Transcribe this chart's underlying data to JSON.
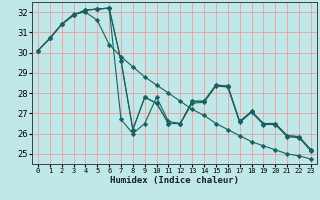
{
  "title": "",
  "xlabel": "Humidex (Indice chaleur)",
  "bg_color": "#c0e8e8",
  "grid_color": "#e8a0a0",
  "line_color": "#1a6060",
  "xlim": [
    -0.5,
    23.5
  ],
  "ylim": [
    24.5,
    32.5
  ],
  "xticks": [
    0,
    1,
    2,
    3,
    4,
    5,
    6,
    7,
    8,
    9,
    10,
    11,
    12,
    13,
    14,
    15,
    16,
    17,
    18,
    19,
    20,
    21,
    22,
    23
  ],
  "yticks": [
    25,
    26,
    27,
    28,
    29,
    30,
    31,
    32
  ],
  "series": [
    [
      30.1,
      30.7,
      31.4,
      31.9,
      32.0,
      31.6,
      30.4,
      29.8,
      29.3,
      28.8,
      28.4,
      28.0,
      27.6,
      27.2,
      26.9,
      26.5,
      26.2,
      25.9,
      25.6,
      25.4,
      25.2,
      25.0,
      24.9,
      24.75
    ],
    [
      30.1,
      30.7,
      31.4,
      31.85,
      32.1,
      32.15,
      32.2,
      29.6,
      26.2,
      27.8,
      27.5,
      26.5,
      26.5,
      27.6,
      27.6,
      28.4,
      28.35,
      26.6,
      27.1,
      26.5,
      26.5,
      25.9,
      25.85,
      25.2
    ],
    [
      30.1,
      30.7,
      31.4,
      31.85,
      32.1,
      32.15,
      32.2,
      29.6,
      26.2,
      27.8,
      27.5,
      26.5,
      26.5,
      27.6,
      27.6,
      28.4,
      28.35,
      26.6,
      27.1,
      26.5,
      26.5,
      25.9,
      25.85,
      25.2
    ],
    [
      30.1,
      30.7,
      31.4,
      31.85,
      32.1,
      32.15,
      32.2,
      26.7,
      26.0,
      26.5,
      27.8,
      26.6,
      26.5,
      27.5,
      27.55,
      28.35,
      28.3,
      26.55,
      27.05,
      26.45,
      26.45,
      25.85,
      25.8,
      25.15
    ]
  ]
}
